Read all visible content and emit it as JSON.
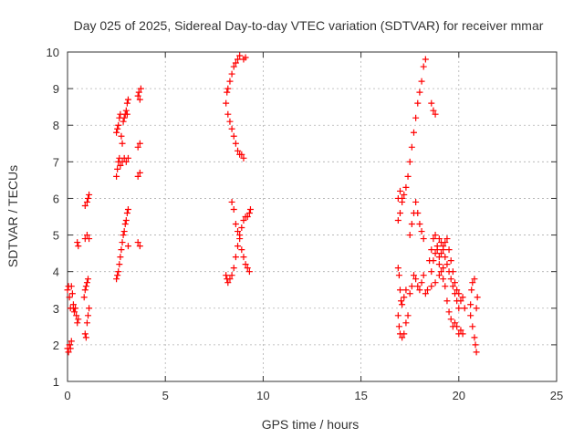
{
  "chart_data": {
    "type": "scatter",
    "title": "Day 025 of 2025, Sidereal Day-to-day VTEC variation (SDTVAR) for receiver mmar",
    "xlabel": "GPS time / hours",
    "ylabel": "SDTVAR / TECUs",
    "xlim": [
      0,
      25
    ],
    "ylim": [
      1,
      10
    ],
    "xticks": [
      0,
      5,
      10,
      15,
      20,
      25
    ],
    "yticks": [
      1,
      2,
      3,
      4,
      5,
      6,
      7,
      8,
      9,
      10
    ],
    "xtick_labels": [
      "0",
      "5",
      "10",
      "15",
      "20",
      "25"
    ],
    "ytick_labels": [
      "1",
      "2",
      "3",
      "4",
      "5",
      "6",
      "7",
      "8",
      "9",
      "10"
    ],
    "grid": true,
    "marker": "plus",
    "color": "#ff0000",
    "series": [
      {
        "name": "SDTVAR",
        "points": [
          [
            0.0,
            3.5
          ],
          [
            0.05,
            3.6
          ],
          [
            0.1,
            3.3
          ],
          [
            0.15,
            3.0
          ],
          [
            0.2,
            3.6
          ],
          [
            0.25,
            3.4
          ],
          [
            0.3,
            3.0
          ],
          [
            0.35,
            2.9
          ],
          [
            0.0,
            1.9
          ],
          [
            0.05,
            1.8
          ],
          [
            0.1,
            2.0
          ],
          [
            0.15,
            1.9
          ],
          [
            0.2,
            2.1
          ],
          [
            0.3,
            3.1
          ],
          [
            0.4,
            3.0
          ],
          [
            0.45,
            2.8
          ],
          [
            0.5,
            4.8
          ],
          [
            0.55,
            4.7
          ],
          [
            0.5,
            2.6
          ],
          [
            0.55,
            2.7
          ],
          [
            0.85,
            3.3
          ],
          [
            0.9,
            3.5
          ],
          [
            0.95,
            3.6
          ],
          [
            1.0,
            3.7
          ],
          [
            1.05,
            3.8
          ],
          [
            0.9,
            2.3
          ],
          [
            0.95,
            2.2
          ],
          [
            1.0,
            2.6
          ],
          [
            1.05,
            2.8
          ],
          [
            1.1,
            3.0
          ],
          [
            0.9,
            4.9
          ],
          [
            1.0,
            5.0
          ],
          [
            1.1,
            4.9
          ],
          [
            0.9,
            5.8
          ],
          [
            1.0,
            5.9
          ],
          [
            1.05,
            6.0
          ],
          [
            1.1,
            6.1
          ],
          [
            2.5,
            3.8
          ],
          [
            2.55,
            3.9
          ],
          [
            2.6,
            4.0
          ],
          [
            2.65,
            4.2
          ],
          [
            2.7,
            4.4
          ],
          [
            2.75,
            4.6
          ],
          [
            2.8,
            4.8
          ],
          [
            2.85,
            5.0
          ],
          [
            2.9,
            5.1
          ],
          [
            2.95,
            5.3
          ],
          [
            3.0,
            5.4
          ],
          [
            3.05,
            5.6
          ],
          [
            3.1,
            5.7
          ],
          [
            3.1,
            4.7
          ],
          [
            2.5,
            6.6
          ],
          [
            2.55,
            6.8
          ],
          [
            2.6,
            7.0
          ],
          [
            2.65,
            7.1
          ],
          [
            2.7,
            6.9
          ],
          [
            2.8,
            7.0
          ],
          [
            2.9,
            7.1
          ],
          [
            3.0,
            7.0
          ],
          [
            3.1,
            7.1
          ],
          [
            2.5,
            7.8
          ],
          [
            2.55,
            7.9
          ],
          [
            2.6,
            8.0
          ],
          [
            2.65,
            8.2
          ],
          [
            2.7,
            8.3
          ],
          [
            2.75,
            7.7
          ],
          [
            2.8,
            7.5
          ],
          [
            2.85,
            8.1
          ],
          [
            2.9,
            8.2
          ],
          [
            2.95,
            8.3
          ],
          [
            3.0,
            8.4
          ],
          [
            3.05,
            8.6
          ],
          [
            3.1,
            8.7
          ],
          [
            3.05,
            8.3
          ],
          [
            3.6,
            4.8
          ],
          [
            3.7,
            4.7
          ],
          [
            3.6,
            6.6
          ],
          [
            3.7,
            6.7
          ],
          [
            3.6,
            7.4
          ],
          [
            3.7,
            7.5
          ],
          [
            3.6,
            8.8
          ],
          [
            3.65,
            8.9
          ],
          [
            3.7,
            8.7
          ],
          [
            3.75,
            9.0
          ],
          [
            8.1,
            3.9
          ],
          [
            8.15,
            3.8
          ],
          [
            8.2,
            3.7
          ],
          [
            8.3,
            3.8
          ],
          [
            8.4,
            3.9
          ],
          [
            8.5,
            4.1
          ],
          [
            8.6,
            4.4
          ],
          [
            8.7,
            4.7
          ],
          [
            8.8,
            5.0
          ],
          [
            8.9,
            5.2
          ],
          [
            9.0,
            5.4
          ],
          [
            9.1,
            5.5
          ],
          [
            9.2,
            5.5
          ],
          [
            9.3,
            5.6
          ],
          [
            9.35,
            5.7
          ],
          [
            8.4,
            5.9
          ],
          [
            8.5,
            5.7
          ],
          [
            8.6,
            5.3
          ],
          [
            8.7,
            5.1
          ],
          [
            8.8,
            4.9
          ],
          [
            8.9,
            4.6
          ],
          [
            9.0,
            4.4
          ],
          [
            9.1,
            4.2
          ],
          [
            9.2,
            4.1
          ],
          [
            9.3,
            4.0
          ],
          [
            8.1,
            8.6
          ],
          [
            8.15,
            8.9
          ],
          [
            8.2,
            9.0
          ],
          [
            8.3,
            9.2
          ],
          [
            8.4,
            9.4
          ],
          [
            8.5,
            9.6
          ],
          [
            8.6,
            9.7
          ],
          [
            8.7,
            9.8
          ],
          [
            8.8,
            9.9
          ],
          [
            9.0,
            9.8
          ],
          [
            9.1,
            9.85
          ],
          [
            8.2,
            8.3
          ],
          [
            8.3,
            8.1
          ],
          [
            8.4,
            7.9
          ],
          [
            8.5,
            7.7
          ],
          [
            8.6,
            7.5
          ],
          [
            8.7,
            7.3
          ],
          [
            8.8,
            7.2
          ],
          [
            8.9,
            7.2
          ],
          [
            9.0,
            7.1
          ],
          [
            16.9,
            4.1
          ],
          [
            16.95,
            3.9
          ],
          [
            17.0,
            3.5
          ],
          [
            17.05,
            3.2
          ],
          [
            17.1,
            3.1
          ],
          [
            17.2,
            3.3
          ],
          [
            17.3,
            3.5
          ],
          [
            16.9,
            2.8
          ],
          [
            16.95,
            2.5
          ],
          [
            17.0,
            2.3
          ],
          [
            17.1,
            2.2
          ],
          [
            17.2,
            2.3
          ],
          [
            17.3,
            2.6
          ],
          [
            17.4,
            2.8
          ],
          [
            17.5,
            3.4
          ],
          [
            17.6,
            3.6
          ],
          [
            17.7,
            3.9
          ],
          [
            17.8,
            3.8
          ],
          [
            17.9,
            3.6
          ],
          [
            18.0,
            3.5
          ],
          [
            18.1,
            3.7
          ],
          [
            18.2,
            3.9
          ],
          [
            17.5,
            5.0
          ],
          [
            17.6,
            5.3
          ],
          [
            17.7,
            5.6
          ],
          [
            17.8,
            5.9
          ],
          [
            17.9,
            5.6
          ],
          [
            18.0,
            5.3
          ],
          [
            18.1,
            5.1
          ],
          [
            18.2,
            4.9
          ],
          [
            16.9,
            5.4
          ],
          [
            17.0,
            5.6
          ],
          [
            17.1,
            5.9
          ],
          [
            17.2,
            6.1
          ],
          [
            17.3,
            6.3
          ],
          [
            17.4,
            6.6
          ],
          [
            17.5,
            7.0
          ],
          [
            17.6,
            7.4
          ],
          [
            17.7,
            7.8
          ],
          [
            17.8,
            8.2
          ],
          [
            17.9,
            8.6
          ],
          [
            18.0,
            8.9
          ],
          [
            18.1,
            9.2
          ],
          [
            18.2,
            9.6
          ],
          [
            18.3,
            9.8
          ],
          [
            16.9,
            6.0
          ],
          [
            17.0,
            6.2
          ],
          [
            17.1,
            6.0
          ],
          [
            18.6,
            8.6
          ],
          [
            18.7,
            8.4
          ],
          [
            18.8,
            8.3
          ],
          [
            18.5,
            4.3
          ],
          [
            18.6,
            4.0
          ],
          [
            18.7,
            4.3
          ],
          [
            18.8,
            4.5
          ],
          [
            18.9,
            4.7
          ],
          [
            19.0,
            4.9
          ],
          [
            19.1,
            4.8
          ],
          [
            19.2,
            4.6
          ],
          [
            19.3,
            4.4
          ],
          [
            19.4,
            4.2
          ],
          [
            19.5,
            4.0
          ],
          [
            19.6,
            3.8
          ],
          [
            19.7,
            3.6
          ],
          [
            19.8,
            3.4
          ],
          [
            19.9,
            3.2
          ],
          [
            20.0,
            3.0
          ],
          [
            18.6,
            4.6
          ],
          [
            18.7,
            4.9
          ],
          [
            18.8,
            5.0
          ],
          [
            18.9,
            4.6
          ],
          [
            19.0,
            4.2
          ],
          [
            19.1,
            4.0
          ],
          [
            19.2,
            3.8
          ],
          [
            19.3,
            3.6
          ],
          [
            19.4,
            3.2
          ],
          [
            19.5,
            2.9
          ],
          [
            19.6,
            2.7
          ],
          [
            19.7,
            2.5
          ],
          [
            19.8,
            2.6
          ],
          [
            19.9,
            2.5
          ],
          [
            20.0,
            2.3
          ],
          [
            19.0,
            4.4
          ],
          [
            19.1,
            4.5
          ],
          [
            19.2,
            4.7
          ],
          [
            19.3,
            4.8
          ],
          [
            19.4,
            4.9
          ],
          [
            19.5,
            4.6
          ],
          [
            19.6,
            4.3
          ],
          [
            19.7,
            4.0
          ],
          [
            19.8,
            3.7
          ],
          [
            19.9,
            3.5
          ],
          [
            20.0,
            3.4
          ],
          [
            20.1,
            3.2
          ],
          [
            20.2,
            3.3
          ],
          [
            20.3,
            3.0
          ],
          [
            20.1,
            2.4
          ],
          [
            20.2,
            2.3
          ],
          [
            18.6,
            3.6
          ],
          [
            18.8,
            3.7
          ],
          [
            19.0,
            3.9
          ],
          [
            19.2,
            4.1
          ],
          [
            18.4,
            3.5
          ],
          [
            18.3,
            3.4
          ],
          [
            20.6,
            3.1
          ],
          [
            20.65,
            3.5
          ],
          [
            20.7,
            3.7
          ],
          [
            20.8,
            3.8
          ],
          [
            20.6,
            2.8
          ],
          [
            20.7,
            2.5
          ],
          [
            20.8,
            2.2
          ],
          [
            20.85,
            2.0
          ],
          [
            20.9,
            1.8
          ],
          [
            20.95,
            3.3
          ],
          [
            20.9,
            3.0
          ]
        ]
      }
    ]
  }
}
